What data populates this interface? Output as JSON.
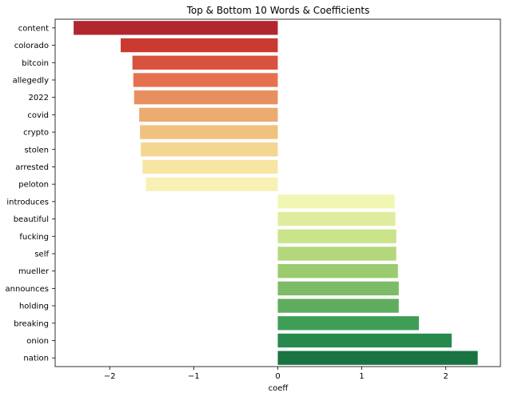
{
  "chart_data": {
    "type": "bar",
    "orientation": "horizontal",
    "title": "Top & Bottom 10 Words & Coefficients",
    "xlabel": "coeff",
    "ylabel": "",
    "xlim": [
      -2.65,
      2.65
    ],
    "xticks": [
      -2,
      -1,
      0,
      1,
      2
    ],
    "xtick_labels": [
      "−2",
      "−1",
      "0",
      "1",
      "2"
    ],
    "grid": false,
    "categories": [
      "content",
      "colorado",
      "bitcoin",
      "allegedly",
      "2022",
      "covid",
      "crypto",
      "stolen",
      "arrested",
      "peloton",
      "introduces",
      "beautiful",
      "fucking",
      "self",
      "mueller",
      "announces",
      "holding",
      "breaking",
      "onion",
      "nation"
    ],
    "values": [
      -2.43,
      -1.87,
      -1.73,
      -1.72,
      -1.71,
      -1.65,
      -1.64,
      -1.63,
      -1.61,
      -1.57,
      1.39,
      1.4,
      1.41,
      1.41,
      1.43,
      1.44,
      1.44,
      1.68,
      2.07,
      2.38
    ],
    "colors": [
      "#b2262f",
      "#cb3a2f",
      "#d8523d",
      "#e67150",
      "#e88f60",
      "#ecab70",
      "#f0c27e",
      "#f3d68f",
      "#f6e6a2",
      "#f7f1b6",
      "#f1f7b2",
      "#dfec9e",
      "#c9e48b",
      "#b4d77b",
      "#9acb6e",
      "#7dbb67",
      "#61ad60",
      "#3f9e56",
      "#268a4d",
      "#197441"
    ]
  }
}
